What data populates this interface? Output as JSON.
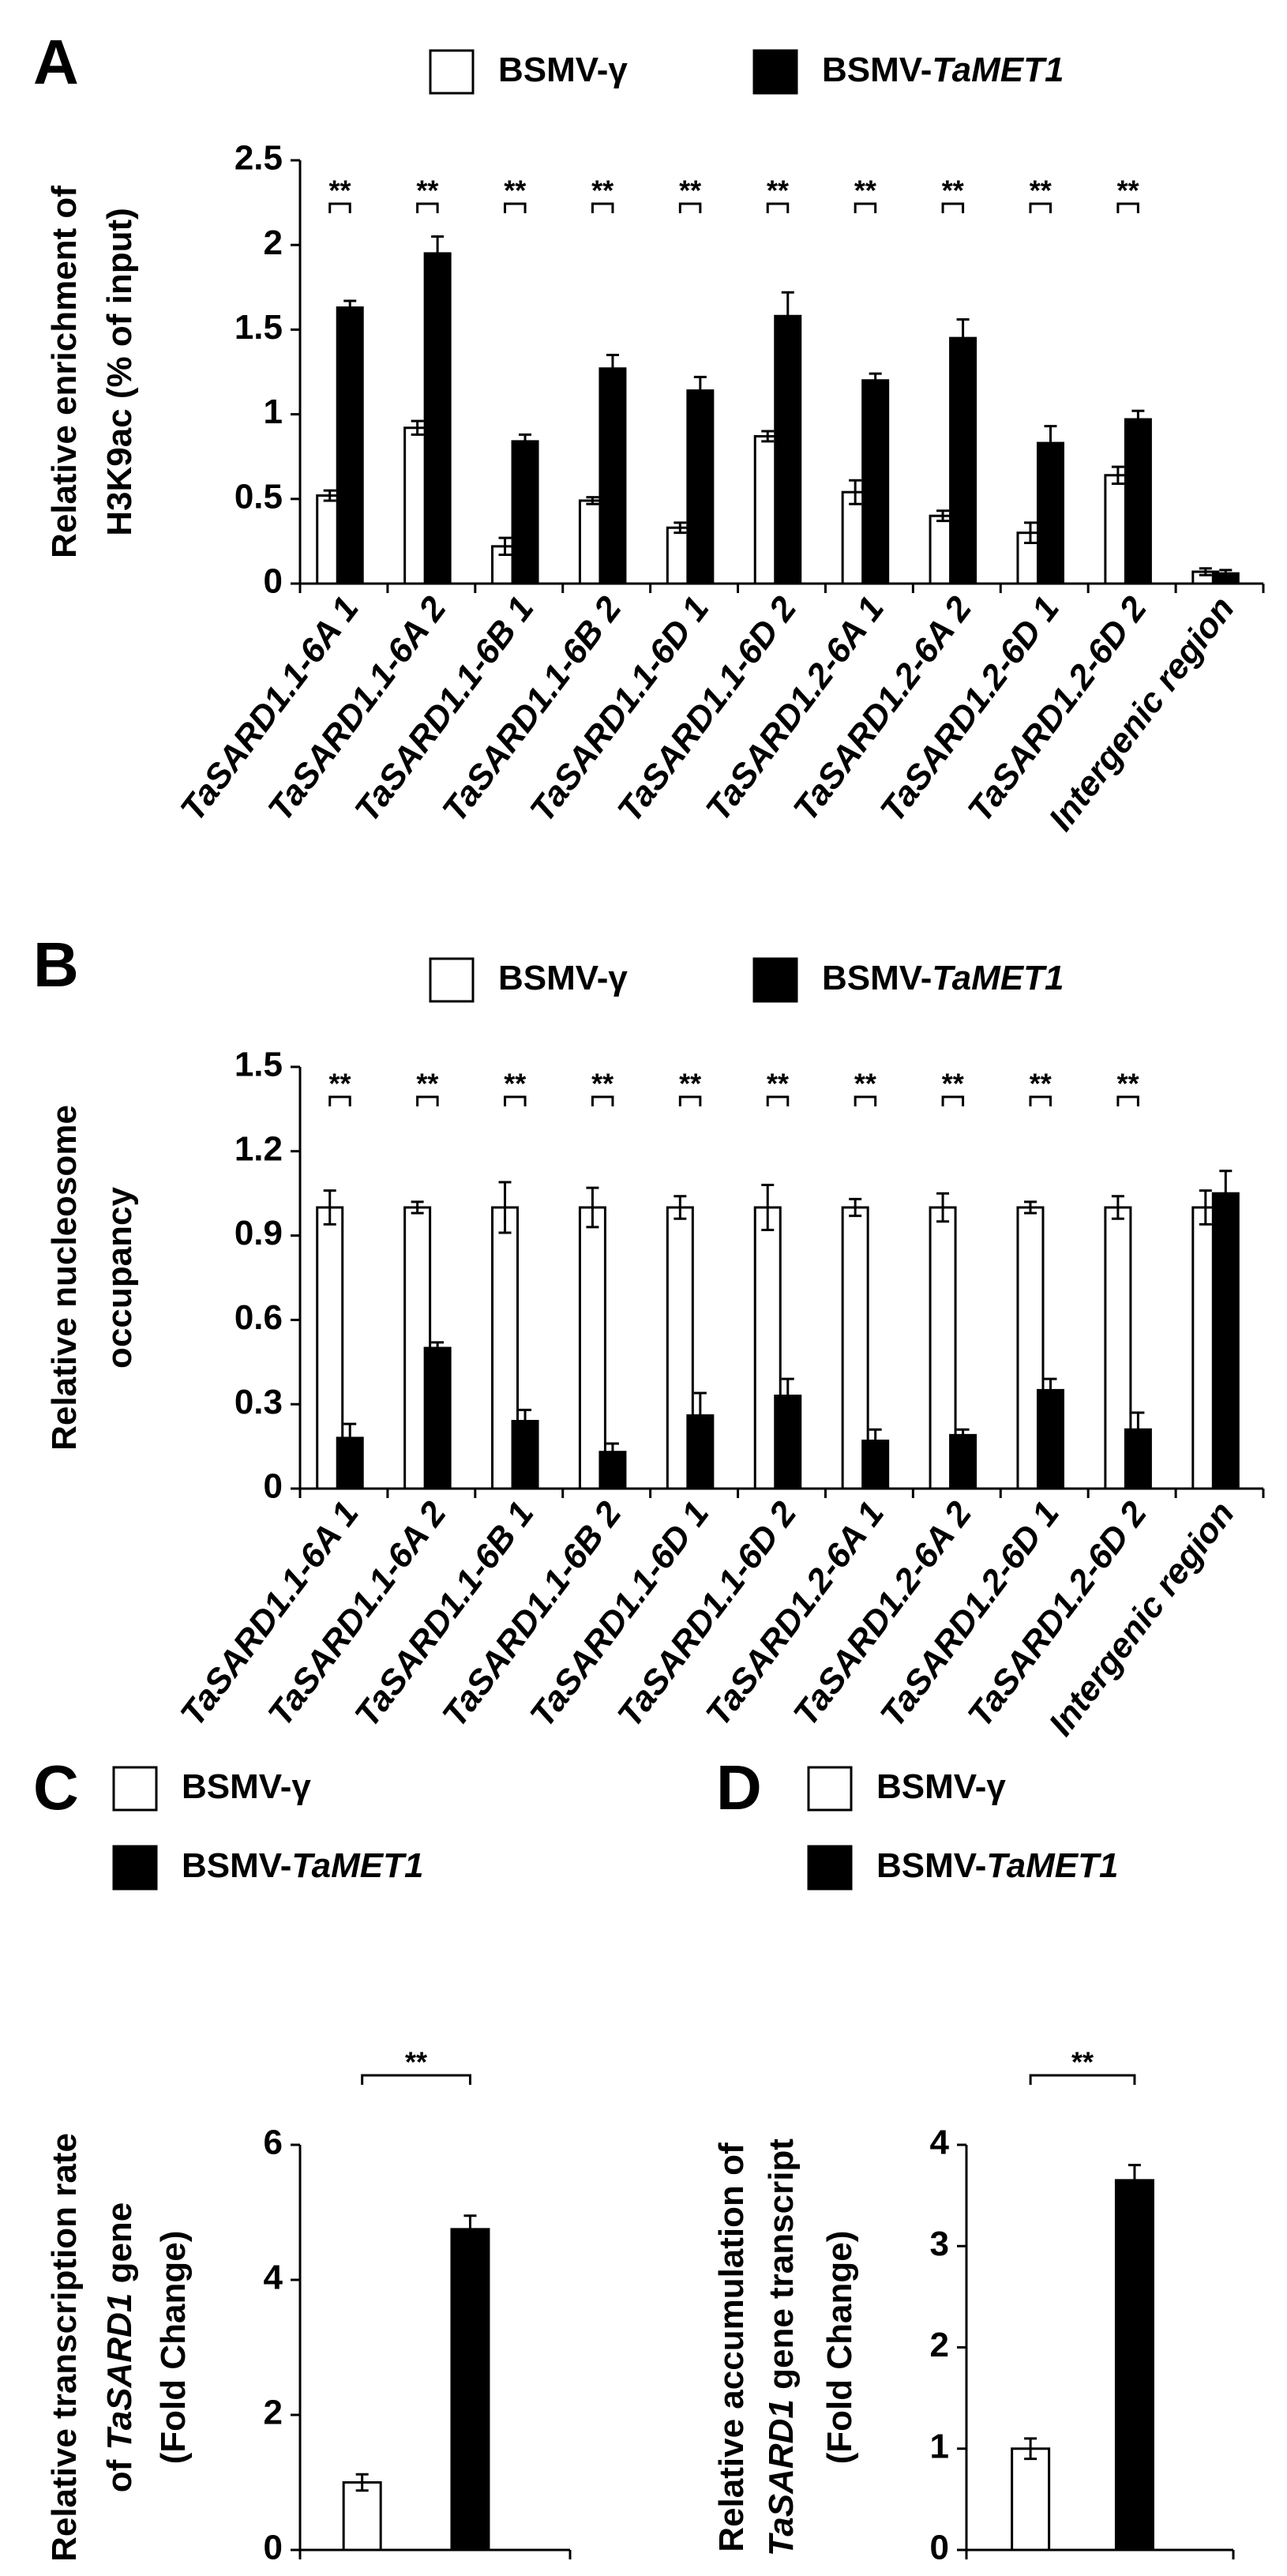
{
  "chart_data": [
    {
      "type": "bar",
      "panel": "A",
      "ylabel": [
        "Relative enrichment of",
        "H3K9ac (% of input)"
      ],
      "categories": [
        "TaSARD1.1-6A 1",
        "TaSARD1.1-6A 2",
        "TaSARD1.1-6B 1",
        "TaSARD1.1-6B 2",
        "TaSARD1.1-6D 1",
        "TaSARD1.1-6D 2",
        "TaSARD1.2-6A 1",
        "TaSARD1.2-6A 2",
        "TaSARD1.2-6D 1",
        "TaSARD1.2-6D 2",
        "Intergenic region"
      ],
      "series": [
        {
          "name": "BSMV-γ",
          "color": "#ffffff",
          "values": [
            0.52,
            0.92,
            0.22,
            0.49,
            0.33,
            0.87,
            0.54,
            0.4,
            0.3,
            0.64,
            0.07
          ],
          "errors": [
            0.03,
            0.04,
            0.05,
            0.02,
            0.03,
            0.03,
            0.07,
            0.03,
            0.06,
            0.05,
            0.02
          ]
        },
        {
          "name": "BSMV-TaMET1",
          "color": "#000000",
          "values": [
            1.63,
            1.95,
            0.84,
            1.27,
            1.14,
            1.58,
            1.2,
            1.45,
            0.83,
            0.97,
            0.06
          ],
          "errors": [
            0.04,
            0.1,
            0.04,
            0.08,
            0.08,
            0.14,
            0.04,
            0.11,
            0.1,
            0.05,
            0.02
          ]
        }
      ],
      "significance": [
        "**",
        "**",
        "**",
        "**",
        "**",
        "**",
        "**",
        "**",
        "**",
        "**",
        null
      ],
      "ylim": [
        0,
        2.5
      ],
      "yticks": [
        0,
        0.5,
        1,
        1.5,
        2,
        2.5
      ]
    },
    {
      "type": "bar",
      "panel": "B",
      "ylabel": [
        "Relative nucleosome",
        "occupancy"
      ],
      "categories": [
        "TaSARD1.1-6A 1",
        "TaSARD1.1-6A 2",
        "TaSARD1.1-6B 1",
        "TaSARD1.1-6B 2",
        "TaSARD1.1-6D 1",
        "TaSARD1.1-6D 2",
        "TaSARD1.2-6A 1",
        "TaSARD1.2-6A 2",
        "TaSARD1.2-6D 1",
        "TaSARD1.2-6D 2",
        "Intergenic region"
      ],
      "series": [
        {
          "name": "BSMV-γ",
          "color": "#ffffff",
          "values": [
            1.0,
            1.0,
            1.0,
            1.0,
            1.0,
            1.0,
            1.0,
            1.0,
            1.0,
            1.0,
            1.0
          ],
          "errors": [
            0.06,
            0.02,
            0.09,
            0.07,
            0.04,
            0.08,
            0.03,
            0.05,
            0.02,
            0.04,
            0.06
          ]
        },
        {
          "name": "BSMV-TaMET1",
          "color": "#000000",
          "values": [
            0.18,
            0.5,
            0.24,
            0.13,
            0.26,
            0.33,
            0.17,
            0.19,
            0.35,
            0.21,
            1.05
          ],
          "errors": [
            0.05,
            0.02,
            0.04,
            0.03,
            0.08,
            0.06,
            0.04,
            0.02,
            0.04,
            0.06,
            0.08
          ]
        }
      ],
      "significance": [
        "**",
        "**",
        "**",
        "**",
        "**",
        "**",
        "**",
        "**",
        "**",
        "**",
        null
      ],
      "ylim": [
        0,
        1.5
      ],
      "yticks": [
        0,
        0.3,
        0.6,
        0.9,
        1.2,
        1.5
      ]
    },
    {
      "type": "bar",
      "panel": "C",
      "ylabel": [
        "Relative transcription rate",
        "of TaSARD1 gene",
        "(Fold Change)"
      ],
      "categories": [
        null
      ],
      "series": [
        {
          "name": "BSMV-γ",
          "color": "#ffffff",
          "values": [
            1.0
          ],
          "errors": [
            0.12
          ]
        },
        {
          "name": "BSMV-TaMET1",
          "color": "#000000",
          "values": [
            4.75
          ],
          "errors": [
            0.2
          ]
        }
      ],
      "significance": [
        "**"
      ],
      "ylim": [
        0,
        6
      ],
      "yticks": [
        0,
        2,
        4,
        6
      ]
    },
    {
      "type": "bar",
      "panel": "D",
      "ylabel": [
        "Relative accumulation of",
        "TaSARD1 gene transcript",
        "(Fold Change)"
      ],
      "categories": [
        null
      ],
      "series": [
        {
          "name": "BSMV-γ",
          "color": "#ffffff",
          "values": [
            1.0
          ],
          "errors": [
            0.1
          ]
        },
        {
          "name": "BSMV-TaMET1",
          "color": "#000000",
          "values": [
            3.65
          ],
          "errors": [
            0.15
          ]
        }
      ],
      "significance": [
        "**"
      ],
      "ylim": [
        0,
        4
      ],
      "yticks": [
        0,
        1,
        2,
        3,
        4
      ]
    }
  ]
}
